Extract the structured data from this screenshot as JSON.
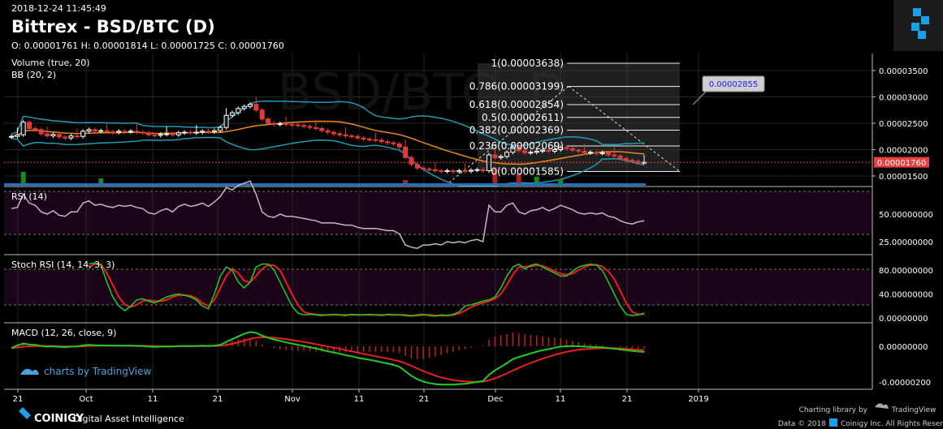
{
  "header": {
    "timestamp": "2018-12-24 11:45:49",
    "title": "Bittrex - BSD/BTC (D)",
    "ohlc": "O: 0.00001761 H: 0.00001814 L: 0.00001725 C: 0.00001760"
  },
  "watermark": "BSD/BTC, D",
  "footer": {
    "brand": "COINIGY",
    "tagline": "Digital Asset Intelligence",
    "charting_by": "Charting library by",
    "tv_name": "TradingView",
    "copyright": "Data © 2018",
    "copyright_rest": "Coinigy Inc. All Rights Reserved",
    "charts_by": "charts by TradingView"
  },
  "colors": {
    "background": "#000000",
    "grid": "#262626",
    "bb_band": "#1e9cb4",
    "bb_basis": "#e88a1a",
    "candle_up": "#ffffff",
    "candle_down": "#e23a3a",
    "rsi_line": "#c8b4c8",
    "stoch_k": "#22cc22",
    "stoch_d": "#e82020",
    "macd_line": "#22cc22",
    "macd_signal": "#e82020",
    "price_tag": "#e84040",
    "fib_box": "#3a3a3a",
    "logo_blue": "#1aa0e6"
  },
  "chart_data": [
    {
      "type": "candlestick",
      "name": "BSD/BTC",
      "title": "Bittrex - BSD/BTC (D)",
      "overlay": "BB (20, 2)",
      "volume_label": "Volume (true, 20)",
      "x_ticks": [
        "21",
        "Oct",
        "11",
        "21",
        "Nov",
        "11",
        "21",
        "Dec",
        "11",
        "21",
        "2019"
      ],
      "y_ticks": [
        "0.00003500",
        "0.00003000",
        "0.00002500",
        "0.00002000",
        "0.00001500"
      ],
      "ylim": [
        1.25e-05,
        3.8e-05
      ],
      "last_price": "0.00001760",
      "close": [
        2.25e-05,
        2.28e-05,
        2.52e-05,
        2.4e-05,
        2.38e-05,
        2.3e-05,
        2.26e-05,
        2.29e-05,
        2.24e-05,
        2.22e-05,
        2.26e-05,
        2.25e-05,
        2.35e-05,
        2.38e-05,
        2.35e-05,
        2.36e-05,
        2.34e-05,
        2.33e-05,
        2.35e-05,
        2.34e-05,
        2.35e-05,
        2.33e-05,
        2.32e-05,
        2.28e-05,
        2.27e-05,
        2.29e-05,
        2.3e-05,
        2.28e-05,
        2.32e-05,
        2.33e-05,
        2.32e-05,
        2.33e-05,
        2.35e-05,
        2.34e-05,
        2.36e-05,
        2.42e-05,
        2.65e-05,
        2.7e-05,
        2.78e-05,
        2.82e-05,
        2.86e-05,
        2.75e-05,
        2.58e-05,
        2.5e-05,
        2.48e-05,
        2.49e-05,
        2.48e-05,
        2.47e-05,
        2.46e-05,
        2.44e-05,
        2.42e-05,
        2.4e-05,
        2.36e-05,
        2.33e-05,
        2.3e-05,
        2.28e-05,
        2.26e-05,
        2.25e-05,
        2.22e-05,
        2.2e-05,
        2.19e-05,
        2.18e-05,
        2.15e-05,
        2.13e-05,
        2.11e-05,
        2.05e-05,
        1.85e-05,
        1.72e-05,
        1.65e-05,
        1.63e-05,
        1.62e-05,
        1.6e-05,
        1.59e-05,
        1.6e-05,
        1.58e-05,
        1.6e-05,
        1.59e-05,
        1.61e-05,
        1.62e-05,
        1.6e-05,
        1.9e-05,
        1.85e-05,
        1.87e-05,
        1.95e-05,
        2.05e-05,
        1.98e-05,
        1.94e-05,
        1.95e-05,
        1.97e-05,
        1.99e-05,
        1.97e-05,
        2e-05,
        2.04e-05,
        2.02e-05,
        1.99e-05,
        1.97e-05,
        1.94e-05,
        1.95e-05,
        1.93e-05,
        1.94e-05,
        1.9e-05,
        1.88e-05,
        1.83e-05,
        1.8e-05,
        1.78e-05,
        1.76e-05,
        1.76e-05
      ]
    },
    {
      "type": "fibonacci",
      "levels": [
        {
          "label": "1(0.00003638)",
          "ratio": 1,
          "price": 3.638e-05
        },
        {
          "label": "0.786(0.00003199)",
          "ratio": 0.786,
          "price": 3.199e-05
        },
        {
          "label": "0.618(0.00002854)",
          "ratio": 0.618,
          "price": 2.854e-05
        },
        {
          "label": "0.5(0.00002611)",
          "ratio": 0.5,
          "price": 2.611e-05
        },
        {
          "label": "0.382(0.00002369)",
          "ratio": 0.382,
          "price": 2.369e-05
        },
        {
          "label": "0.236(0.00002069)",
          "ratio": 0.236,
          "price": 2.069e-05
        },
        {
          "label": "0(0.00001585)",
          "ratio": 0,
          "price": 1.585e-05
        }
      ],
      "callout": "0.00002855"
    },
    {
      "type": "line",
      "name": "RSI (14)",
      "y_ticks": [
        "50.00000000",
        "25.00000000"
      ],
      "ylim": [
        0,
        100
      ],
      "bands": [
        70,
        30
      ],
      "values": [
        55,
        56,
        68,
        60,
        58,
        52,
        50,
        53,
        49,
        48,
        52,
        52,
        60,
        62,
        58,
        59,
        57,
        56,
        58,
        57,
        58,
        56,
        55,
        51,
        50,
        53,
        55,
        52,
        57,
        59,
        57,
        58,
        60,
        57,
        61,
        66,
        74,
        72,
        76,
        78,
        80,
        68,
        52,
        48,
        47,
        50,
        48,
        48,
        47,
        46,
        45,
        44,
        42,
        42,
        42,
        41,
        40,
        40,
        38,
        37,
        37,
        37,
        36,
        35,
        35,
        32,
        22,
        20,
        19,
        22,
        22,
        23,
        22,
        25,
        24,
        25,
        24,
        26,
        27,
        25,
        58,
        52,
        52,
        58,
        60,
        52,
        50,
        53,
        54,
        56,
        53,
        55,
        58,
        56,
        54,
        51,
        50,
        51,
        50,
        51,
        48,
        47,
        44,
        42,
        41,
        43,
        44
      ]
    },
    {
      "type": "line",
      "name": "Stoch RSI (14, 14, 3, 3)",
      "y_ticks": [
        "80.00000000",
        "40.00000000",
        "0.00000000"
      ],
      "ylim": [
        0,
        100
      ],
      "bands": [
        80,
        20
      ],
      "series": [
        {
          "name": "K",
          "values": [
            90,
            92,
            88,
            60,
            35,
            20,
            12,
            20,
            30,
            32,
            28,
            25,
            30,
            35,
            38,
            40,
            38,
            35,
            30,
            20,
            15,
            40,
            70,
            85,
            80,
            60,
            50,
            60,
            85,
            90,
            90,
            80,
            60,
            40,
            20,
            8,
            5,
            6,
            5,
            4,
            5,
            6,
            5,
            4,
            6,
            5,
            5,
            6,
            5,
            4,
            6,
            5,
            5,
            4,
            3,
            5,
            6,
            4,
            3,
            5,
            4,
            6,
            10,
            20,
            22,
            25,
            28,
            30,
            35,
            50,
            70,
            85,
            90,
            82,
            88,
            90,
            85,
            80,
            75,
            70,
            70,
            78,
            85,
            88,
            90,
            88,
            80,
            60,
            40,
            20,
            6,
            4,
            5,
            8
          ]
        },
        {
          "name": "D",
          "values": [
            85,
            90,
            90,
            75,
            55,
            35,
            22,
            18,
            22,
            28,
            30,
            28,
            28,
            30,
            35,
            38,
            38,
            37,
            33,
            25,
            20,
            30,
            50,
            70,
            82,
            75,
            62,
            60,
            70,
            82,
            88,
            88,
            80,
            60,
            40,
            22,
            10,
            7,
            6,
            5,
            5,
            5,
            5,
            5,
            5,
            5,
            5,
            5,
            5,
            5,
            5,
            5,
            5,
            5,
            4,
            4,
            5,
            5,
            4,
            4,
            4,
            5,
            7,
            12,
            18,
            22,
            25,
            28,
            32,
            40,
            55,
            72,
            85,
            86,
            86,
            88,
            87,
            83,
            78,
            74,
            72,
            74,
            80,
            85,
            88,
            89,
            86,
            78,
            65,
            45,
            25,
            10,
            6,
            6
          ]
        }
      ]
    },
    {
      "type": "line",
      "name": "MACD (12, 26, close, 9)",
      "y_ticks": [
        "0.00000000",
        "-0.00000200"
      ],
      "ylim": [
        -2.4e-06,
        1.2e-06
      ],
      "macd": [
        -1e-07,
        5e-08,
        1.5e-07,
        1e-07,
        8e-08,
        2e-08,
        -2e-08,
        0.0,
        -3e-08,
        -5e-08,
        -2e-08,
        -1e-08,
        5e-08,
        8e-08,
        6e-08,
        5e-08,
        4e-08,
        3e-08,
        4e-08,
        3e-08,
        3e-08,
        2e-08,
        1e-08,
        -2e-08,
        -3e-08,
        -2e-08,
        -1e-08,
        -2e-08,
        1e-08,
        2e-08,
        1e-08,
        2e-08,
        3e-08,
        2e-08,
        4e-08,
        8e-08,
        2.5e-07,
        4e-07,
        5.5e-07,
        7e-07,
        8e-07,
        7.5e-07,
        6e-07,
        4.8e-07,
        3.8e-07,
        3e-07,
        2.2e-07,
        1.5e-07,
        8e-08,
        2e-08,
        -5e-08,
        -1.2e-07,
        -2e-07,
        -2.8e-07,
        -3.5e-07,
        -4.2e-07,
        -5e-07,
        -5.6e-07,
        -6.4e-07,
        -7e-07,
        -7.6e-07,
        -8.2e-07,
        -9e-07,
        -9.6e-07,
        -1.04e-06,
        -1.15e-06,
        -1.4e-06,
        -1.65e-06,
        -1.85e-06,
        -1.98e-06,
        -2.06e-06,
        -2.12e-06,
        -2.15e-06,
        -2.14e-06,
        -2.15e-06,
        -2.12e-06,
        -2.1e-06,
        -2.05e-06,
        -2e-06,
        -1.95e-06,
        -1.6e-06,
        -1.35e-06,
        -1.15e-06,
        -9.5e-07,
        -7.2e-07,
        -6e-07,
        -5e-07,
        -4e-07,
        -3e-07,
        -2.2e-07,
        -1.6e-07,
        -8e-08,
        -2e-08,
        0.0,
        1e-08,
        0.0,
        -2e-08,
        -3e-08,
        -5e-08,
        -6e-08,
        -1e-07,
        -1.3e-07,
        -1.8e-07,
        -2.2e-07,
        -2.6e-07,
        -2.9e-07,
        -3.2e-07
      ]
    }
  ]
}
